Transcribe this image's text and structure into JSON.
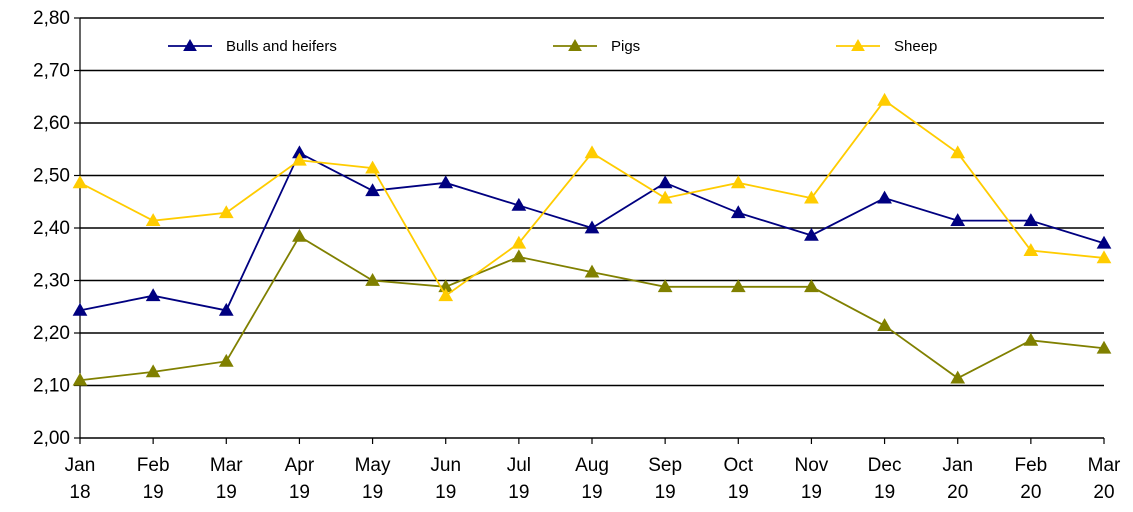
{
  "chart_data": {
    "type": "line",
    "categories": [
      [
        "Jan",
        "18"
      ],
      [
        "Feb",
        "19"
      ],
      [
        "Mar",
        "19"
      ],
      [
        "Apr",
        "19"
      ],
      [
        "May",
        "19"
      ],
      [
        "Jun",
        "19"
      ],
      [
        "Jul",
        "19"
      ],
      [
        "Aug",
        "19"
      ],
      [
        "Sep",
        "19"
      ],
      [
        "Oct",
        "19"
      ],
      [
        "Nov",
        "19"
      ],
      [
        "Dec",
        "19"
      ],
      [
        "Jan",
        "20"
      ],
      [
        "Feb",
        "20"
      ],
      [
        "Mar",
        "20"
      ]
    ],
    "ylim": [
      2.0,
      2.8
    ],
    "y_ticks": [
      "2,00",
      "2,10",
      "2,20",
      "2,30",
      "2,40",
      "2,50",
      "2,60",
      "2,70",
      "2,80"
    ],
    "y_tick_values": [
      2.0,
      2.1,
      2.2,
      2.3,
      2.4,
      2.5,
      2.6,
      2.7,
      2.8
    ],
    "grid": true,
    "legend_position": "top",
    "series": [
      {
        "name": "Bulls and heifers",
        "color": "#000080",
        "marker": "triangle",
        "values": [
          2.243,
          2.271,
          2.243,
          2.543,
          2.471,
          2.486,
          2.443,
          2.4,
          2.486,
          2.429,
          2.386,
          2.457,
          2.414,
          2.414,
          2.371
        ]
      },
      {
        "name": "Pigs",
        "color": "#808000",
        "marker": "triangle",
        "values": [
          2.11,
          2.126,
          2.146,
          2.384,
          2.3,
          2.288,
          2.345,
          2.316,
          2.288,
          2.288,
          2.288,
          2.214,
          2.114,
          2.186,
          2.171
        ]
      },
      {
        "name": "Sheep",
        "color": "#FFCC00",
        "marker": "triangle",
        "values": [
          2.486,
          2.414,
          2.429,
          2.529,
          2.514,
          2.271,
          2.371,
          2.543,
          2.457,
          2.486,
          2.457,
          2.643,
          2.543,
          2.357,
          2.343
        ]
      }
    ]
  }
}
